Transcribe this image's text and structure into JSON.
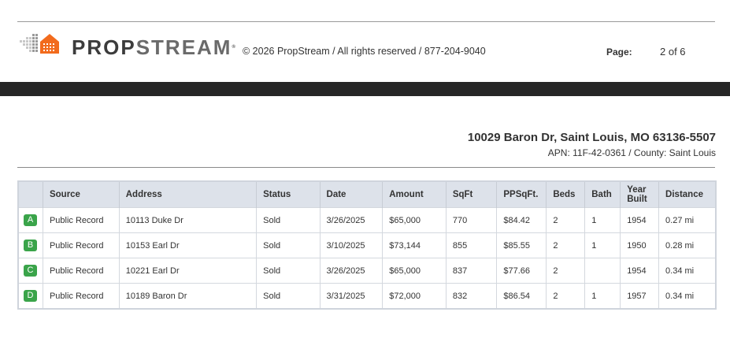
{
  "header": {
    "logo_part1": "PROP",
    "logo_part2": "STREAM",
    "logo_reg": "®",
    "copyright": "© 2026 PropStream / All rights reserved / 877-204-9040",
    "page_label": "Page:",
    "page_value": "2 of 6"
  },
  "property": {
    "address": "10029 Baron Dr, Saint Louis, MO 63136-5507",
    "apn_county": "APN: 11F-42-0361 / County: Saint Louis"
  },
  "table": {
    "headers": {
      "source": "Source",
      "address": "Address",
      "status": "Status",
      "date": "Date",
      "amount": "Amount",
      "sqft": "SqFt",
      "ppsqft": "PPSqFt.",
      "beds": "Beds",
      "bath": "Bath",
      "year_built_1": "Year",
      "year_built_2": "Built",
      "distance": "Distance"
    },
    "rows": [
      {
        "badge": "A",
        "source": "Public Record",
        "address": "10113 Duke Dr",
        "status": "Sold",
        "date": "3/26/2025",
        "amount": "$65,000",
        "sqft": "770",
        "ppsqft": "$84.42",
        "beds": "2",
        "bath": "1",
        "year": "1954",
        "distance": "0.27 mi"
      },
      {
        "badge": "B",
        "source": "Public Record",
        "address": "10153 Earl Dr",
        "status": "Sold",
        "date": "3/10/2025",
        "amount": "$73,144",
        "sqft": "855",
        "ppsqft": "$85.55",
        "beds": "2",
        "bath": "1",
        "year": "1950",
        "distance": "0.28 mi"
      },
      {
        "badge": "C",
        "source": "Public Record",
        "address": "10221 Earl Dr",
        "status": "Sold",
        "date": "3/26/2025",
        "amount": "$65,000",
        "sqft": "837",
        "ppsqft": "$77.66",
        "beds": "2",
        "bath": "",
        "year": "1954",
        "distance": "0.34 mi"
      },
      {
        "badge": "D",
        "source": "Public Record",
        "address": "10189 Baron Dr",
        "status": "Sold",
        "date": "3/31/2025",
        "amount": "$72,000",
        "sqft": "832",
        "ppsqft": "$86.54",
        "beds": "2",
        "bath": "1",
        "year": "1957",
        "distance": "0.34 mi"
      }
    ]
  },
  "colors": {
    "badge_green": "#3aa44a",
    "header_bg": "#dde2ea",
    "logo_orange": "#f26b1d",
    "dark_bar": "#262626"
  }
}
